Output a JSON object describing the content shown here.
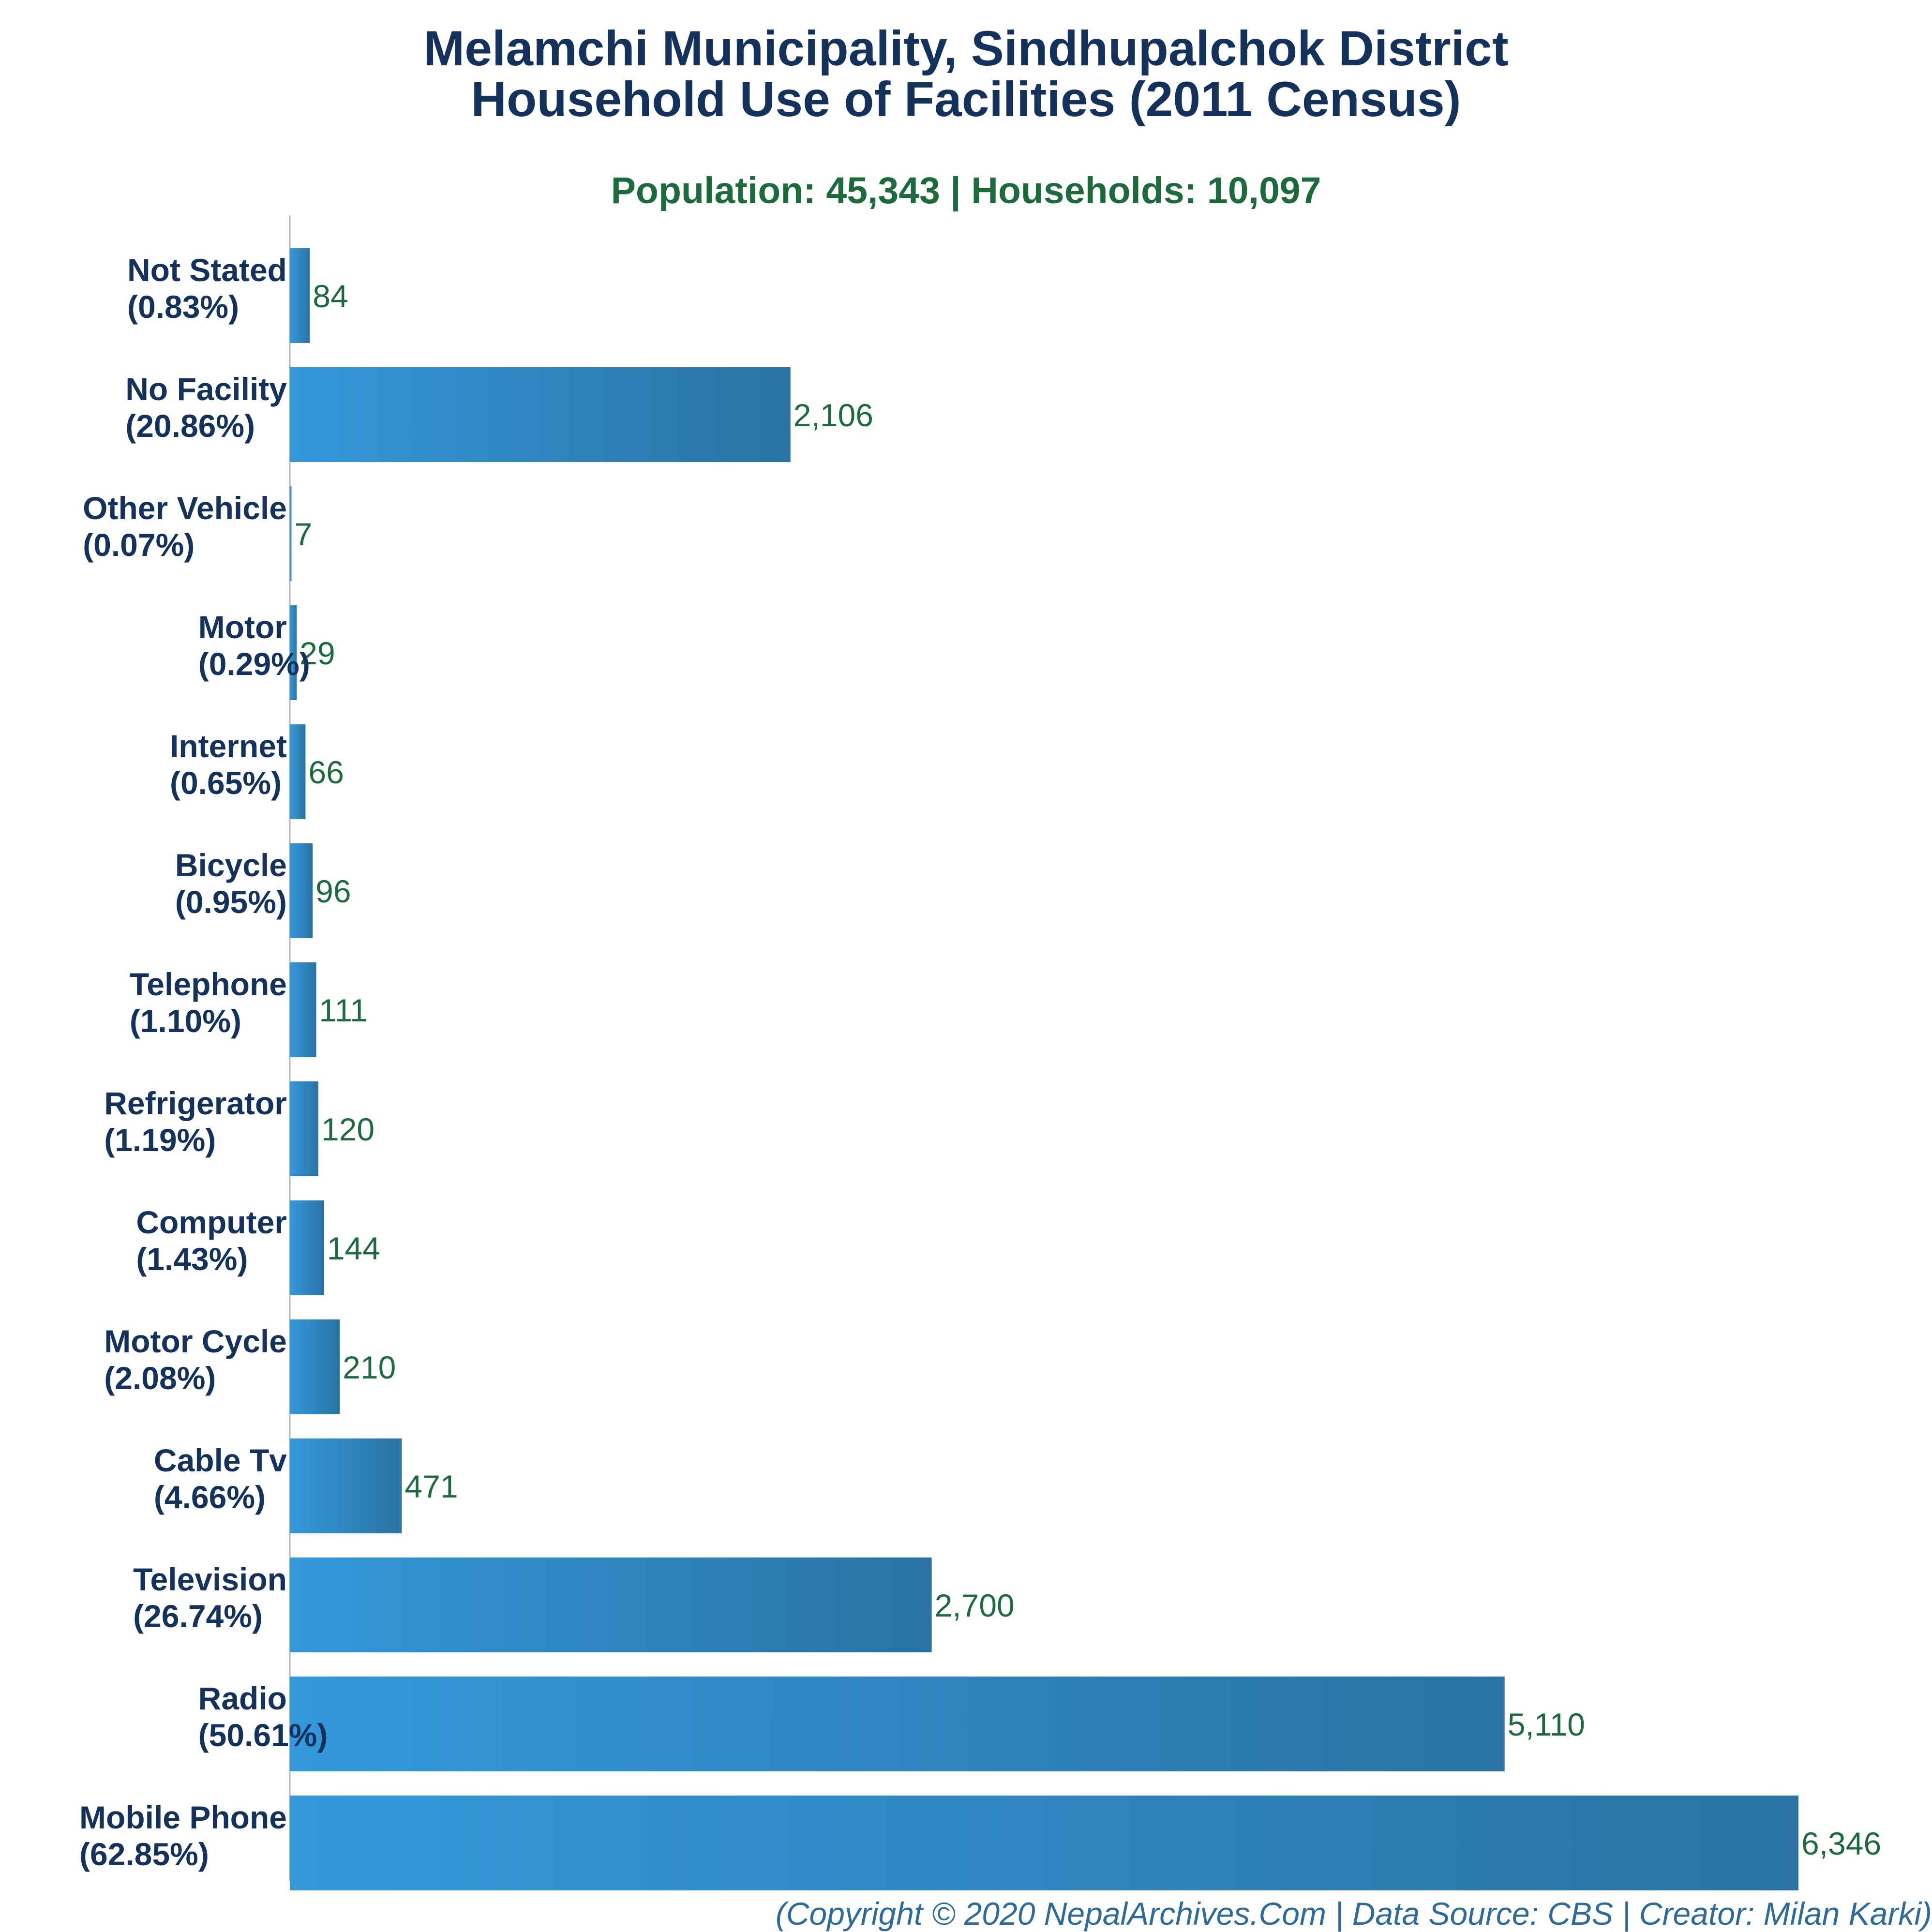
{
  "chart_data": {
    "type": "bar",
    "orientation": "horizontal",
    "title": [
      "Melamchi Municipality, Sindhupalchok District",
      "Household Use of Facilities (2011 Census)"
    ],
    "subtitle": "Population: 45,343 | Households: 10,097",
    "footer": "(Copyright © 2020 NepalArchives.Com | Data Source: CBS | Creator: Milan Karki)",
    "categories": [
      {
        "name": "Not Stated",
        "pct": "(0.83%)",
        "value": 84,
        "value_label": "84"
      },
      {
        "name": "No Facility",
        "pct": "(20.86%)",
        "value": 2106,
        "value_label": "2,106"
      },
      {
        "name": "Other Vehicle",
        "pct": "(0.07%)",
        "value": 7,
        "value_label": "7"
      },
      {
        "name": "Motor",
        "pct": "(0.29%)",
        "value": 29,
        "value_label": "29"
      },
      {
        "name": "Internet",
        "pct": "(0.65%)",
        "value": 66,
        "value_label": "66"
      },
      {
        "name": "Bicycle",
        "pct": "(0.95%)",
        "value": 96,
        "value_label": "96"
      },
      {
        "name": "Telephone",
        "pct": "(1.10%)",
        "value": 111,
        "value_label": "111"
      },
      {
        "name": "Refrigerator",
        "pct": "(1.19%)",
        "value": 120,
        "value_label": "120"
      },
      {
        "name": "Computer",
        "pct": "(1.43%)",
        "value": 144,
        "value_label": "144"
      },
      {
        "name": "Motor Cycle",
        "pct": "(2.08%)",
        "value": 210,
        "value_label": "210"
      },
      {
        "name": "Cable Tv",
        "pct": "(4.66%)",
        "value": 471,
        "value_label": "471"
      },
      {
        "name": "Television",
        "pct": "(26.74%)",
        "value": 2700,
        "value_label": "2,700"
      },
      {
        "name": "Radio",
        "pct": "(50.61%)",
        "value": 5110,
        "value_label": "5,110"
      },
      {
        "name": "Mobile Phone",
        "pct": "(62.85%)",
        "value": 6346,
        "value_label": "6,346"
      }
    ],
    "grid": false,
    "colors": {
      "bar_start": "#3498db",
      "bar_end": "#2a73a4",
      "title": "#14325c",
      "subtitle": "#1d6b3c",
      "value_label": "#1d6b3c",
      "footer": "#2e6a9a"
    }
  }
}
